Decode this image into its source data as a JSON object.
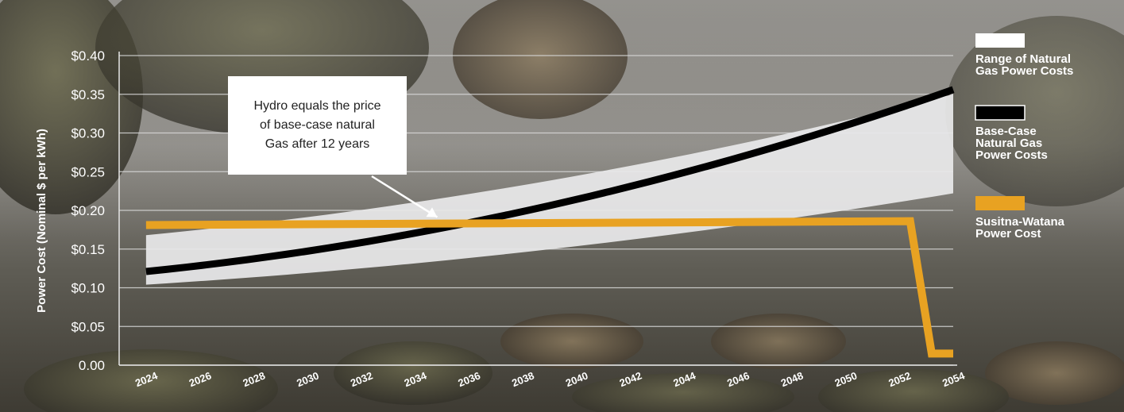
{
  "chart_data": {
    "type": "line",
    "title": "",
    "xlabel": "",
    "ylabel": "Power Cost (Nominal $ per kWh)",
    "ylim": [
      0,
      0.4
    ],
    "xlim": [
      2023,
      2054
    ],
    "y_ticks": [
      {
        "value": 0.0,
        "label": "0.00"
      },
      {
        "value": 0.05,
        "label": "$0.05"
      },
      {
        "value": 0.1,
        "label": "$0.10"
      },
      {
        "value": 0.15,
        "label": "$0.15"
      },
      {
        "value": 0.2,
        "label": "$0.20"
      },
      {
        "value": 0.25,
        "label": "$0.25"
      },
      {
        "value": 0.3,
        "label": "$0.30"
      },
      {
        "value": 0.35,
        "label": "$0.35"
      },
      {
        "value": 0.4,
        "label": "$0.40"
      }
    ],
    "x_ticks": [
      "2024",
      "2026",
      "2028",
      "2030",
      "2032",
      "2034",
      "2036",
      "2038",
      "2040",
      "2042",
      "2044",
      "2046",
      "2048",
      "2050",
      "2052",
      "2054"
    ],
    "grid": true,
    "legend_position": "right",
    "range_series": {
      "name": "Range of Natural Gas Power Costs",
      "color": "#e8e8ea",
      "x": [
        2024,
        2054
      ],
      "low": [
        0.104,
        0.222
      ],
      "high": [
        0.168,
        0.35
      ]
    },
    "series": [
      {
        "name": "Base-Case Natural Gas Power Costs",
        "color": "#000000",
        "x": [
          2024,
          2054
        ],
        "values": [
          0.121,
          0.356
        ]
      },
      {
        "name": "Susitna-Watana Power Cost",
        "color": "#e8a222",
        "x": [
          2024,
          2052.4,
          2053.2,
          2054
        ],
        "values": [
          0.181,
          0.186,
          0.015,
          0.015
        ]
      }
    ],
    "annotation": {
      "lines": [
        "Hydro equals the price",
        "of base-case natural",
        "Gas after 12 years"
      ],
      "target": {
        "x": 2035,
        "y": 0.183
      }
    },
    "legend": [
      {
        "name_lines": [
          "Range of Natural",
          "Gas Power Costs"
        ],
        "color": "#ffffff"
      },
      {
        "name_lines": [
          "Base-Case",
          "Natural Gas",
          "Power Costs"
        ],
        "color": "#000000"
      },
      {
        "name_lines": [
          "Susitna-Watana",
          "Power Cost"
        ],
        "color": "#e8a222"
      }
    ]
  }
}
